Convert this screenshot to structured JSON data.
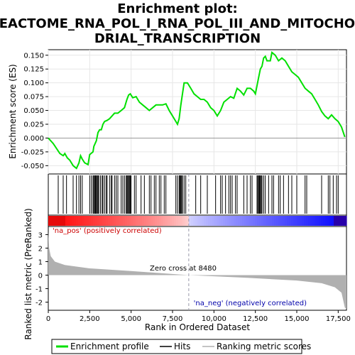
{
  "chart_data": {
    "type": "line",
    "title_lines": [
      "Enrichment plot:",
      "REACTOME_RNA_POL_I_RNA_POL_III_AND_MITOCHON",
      "DRIAL_TRANSCRIPTION"
    ],
    "xlabel": "Rank in Ordered Dataset",
    "xlim": [
      0,
      18000
    ],
    "x_ticks": [
      0,
      2500,
      5000,
      7500,
      10000,
      12500,
      15000,
      17500
    ],
    "x_tick_labels": [
      "0",
      "2,500",
      "5,000",
      "7,500",
      "10,000",
      "12,500",
      "15,000",
      "17,500"
    ],
    "es_panel": {
      "ylabel": "Enrichment score (ES)",
      "ylim": [
        -0.065,
        0.16
      ],
      "y_ticks": [
        -0.05,
        -0.025,
        0.0,
        0.025,
        0.05,
        0.075,
        0.1,
        0.125,
        0.15
      ],
      "y_tick_labels": [
        "-0.050",
        "-0.025",
        "0.000",
        "0.025",
        "0.050",
        "0.075",
        "0.100",
        "0.125",
        "0.150"
      ],
      "series": [
        {
          "name": "Enrichment profile",
          "color": "#00e000",
          "points": [
            [
              0,
              0.0
            ],
            [
              300,
              -0.01
            ],
            [
              700,
              -0.028
            ],
            [
              900,
              -0.032
            ],
            [
              1000,
              -0.028
            ],
            [
              1150,
              -0.036
            ],
            [
              1300,
              -0.04
            ],
            [
              1500,
              -0.05
            ],
            [
              1700,
              -0.055
            ],
            [
              1850,
              -0.045
            ],
            [
              1950,
              -0.032
            ],
            [
              2050,
              -0.038
            ],
            [
              2200,
              -0.045
            ],
            [
              2400,
              -0.048
            ],
            [
              2500,
              -0.03
            ],
            [
              2700,
              -0.025
            ],
            [
              2750,
              -0.015
            ],
            [
              2900,
              -0.005
            ],
            [
              3000,
              0.01
            ],
            [
              3100,
              0.015
            ],
            [
              3200,
              0.015
            ],
            [
              3300,
              0.025
            ],
            [
              3400,
              0.03
            ],
            [
              3550,
              0.032
            ],
            [
              3700,
              0.035
            ],
            [
              3850,
              0.04
            ],
            [
              4000,
              0.045
            ],
            [
              4200,
              0.045
            ],
            [
              4400,
              0.05
            ],
            [
              4600,
              0.055
            ],
            [
              4750,
              0.07
            ],
            [
              4850,
              0.078
            ],
            [
              4950,
              0.08
            ],
            [
              5100,
              0.073
            ],
            [
              5300,
              0.075
            ],
            [
              5500,
              0.065
            ],
            [
              5700,
              0.06
            ],
            [
              5900,
              0.055
            ],
            [
              6100,
              0.05
            ],
            [
              6300,
              0.055
            ],
            [
              6500,
              0.06
            ],
            [
              6700,
              0.06
            ],
            [
              6900,
              0.06
            ],
            [
              7100,
              0.062
            ],
            [
              7300,
              0.05
            ],
            [
              7500,
              0.04
            ],
            [
              7700,
              0.03
            ],
            [
              7800,
              0.025
            ],
            [
              7900,
              0.035
            ],
            [
              8000,
              0.06
            ],
            [
              8100,
              0.08
            ],
            [
              8200,
              0.1
            ],
            [
              8400,
              0.1
            ],
            [
              8600,
              0.09
            ],
            [
              8800,
              0.08
            ],
            [
              9000,
              0.075
            ],
            [
              9200,
              0.07
            ],
            [
              9400,
              0.07
            ],
            [
              9600,
              0.065
            ],
            [
              9800,
              0.055
            ],
            [
              10000,
              0.05
            ],
            [
              10200,
              0.04
            ],
            [
              10400,
              0.05
            ],
            [
              10600,
              0.065
            ],
            [
              10800,
              0.07
            ],
            [
              11000,
              0.075
            ],
            [
              11200,
              0.072
            ],
            [
              11400,
              0.09
            ],
            [
              11600,
              0.085
            ],
            [
              11800,
              0.078
            ],
            [
              12000,
              0.09
            ],
            [
              12200,
              0.09
            ],
            [
              12400,
              0.085
            ],
            [
              12500,
              0.08
            ],
            [
              12600,
              0.095
            ],
            [
              12700,
              0.11
            ],
            [
              12800,
              0.125
            ],
            [
              12900,
              0.13
            ],
            [
              13000,
              0.145
            ],
            [
              13100,
              0.148
            ],
            [
              13200,
              0.14
            ],
            [
              13400,
              0.14
            ],
            [
              13500,
              0.155
            ],
            [
              13700,
              0.15
            ],
            [
              13900,
              0.14
            ],
            [
              14100,
              0.145
            ],
            [
              14300,
              0.14
            ],
            [
              14500,
              0.13
            ],
            [
              14700,
              0.12
            ],
            [
              14900,
              0.115
            ],
            [
              15100,
              0.11
            ],
            [
              15300,
              0.1
            ],
            [
              15500,
              0.09
            ],
            [
              15700,
              0.085
            ],
            [
              15900,
              0.08
            ],
            [
              16100,
              0.07
            ],
            [
              16300,
              0.06
            ],
            [
              16500,
              0.048
            ],
            [
              16700,
              0.04
            ],
            [
              16900,
              0.035
            ],
            [
              17100,
              0.042
            ],
            [
              17300,
              0.035
            ],
            [
              17500,
              0.03
            ],
            [
              17700,
              0.02
            ],
            [
              17900,
              0.002
            ]
          ]
        }
      ]
    },
    "hits": {
      "name": "Hits",
      "positions": [
        600,
        900,
        1100,
        1500,
        1700,
        1850,
        1950,
        2050,
        2500,
        2600,
        2700,
        2750,
        2800,
        2850,
        2900,
        2950,
        3000,
        3050,
        3150,
        3250,
        3300,
        3400,
        3500,
        3550,
        3700,
        3800,
        3850,
        4000,
        4100,
        4200,
        4400,
        4500,
        4600,
        4700,
        4750,
        4800,
        4850,
        4900,
        4950,
        5000,
        5200,
        5300,
        5600,
        5800,
        6100,
        6200,
        6400,
        6500,
        6700,
        6800,
        7000,
        7100,
        7700,
        7800,
        7900,
        7950,
        8000,
        8050,
        8100,
        8200,
        8300,
        8900,
        9200,
        9600,
        10100,
        10400,
        10500,
        10700,
        10900,
        11000,
        11100,
        11300,
        11400,
        11800,
        12000,
        12200,
        12300,
        12600,
        12650,
        12700,
        12750,
        12800,
        12850,
        12900,
        13000,
        13100,
        13300,
        13500,
        13600,
        13900,
        14000,
        14200,
        14500,
        14700,
        15000,
        15500,
        15600,
        16500,
        16900,
        17000,
        17200,
        17400,
        17500
      ]
    },
    "ranked_metric_panel": {
      "ylabel": "Ranked list metric (PreRanked)",
      "ylim": [
        -2.6,
        3.6
      ],
      "y_ticks": [
        -2,
        -1,
        0,
        1,
        2,
        3
      ],
      "y_tick_labels": [
        "-2",
        "-1",
        "0",
        "1",
        "2",
        "3"
      ],
      "series": [
        {
          "name": "Ranking metric scores",
          "color": "#b0b0b0",
          "points": [
            [
              0,
              3.2
            ],
            [
              50,
              2.0
            ],
            [
              150,
              1.4
            ],
            [
              400,
              1.0
            ],
            [
              1000,
              0.75
            ],
            [
              2500,
              0.5
            ],
            [
              5000,
              0.3
            ],
            [
              8480,
              0.0
            ],
            [
              12000,
              -0.2
            ],
            [
              15000,
              -0.4
            ],
            [
              16500,
              -0.6
            ],
            [
              17300,
              -0.9
            ],
            [
              17700,
              -1.3
            ],
            [
              17900,
              -2.4
            ],
            [
              18000,
              -2.5
            ]
          ]
        }
      ],
      "zero_cross_label": "Zero cross at 8480",
      "zero_cross": 8480,
      "pos_label": "'na_pos' (positively correlated)",
      "neg_label": "'na_neg' (negatively correlated)"
    },
    "legend": {
      "placement": "bottom",
      "entries": [
        {
          "label": "Enrichment profile",
          "color": "#00e000"
        },
        {
          "label": "Hits",
          "color": "#000000"
        },
        {
          "label": "Ranking metric scores",
          "color": "#b0b0b0"
        }
      ]
    },
    "colors": {
      "positive": "#ff0000",
      "negative": "#0000ff",
      "pos_label": "#cc0000",
      "neg_label": "#0000aa"
    }
  }
}
